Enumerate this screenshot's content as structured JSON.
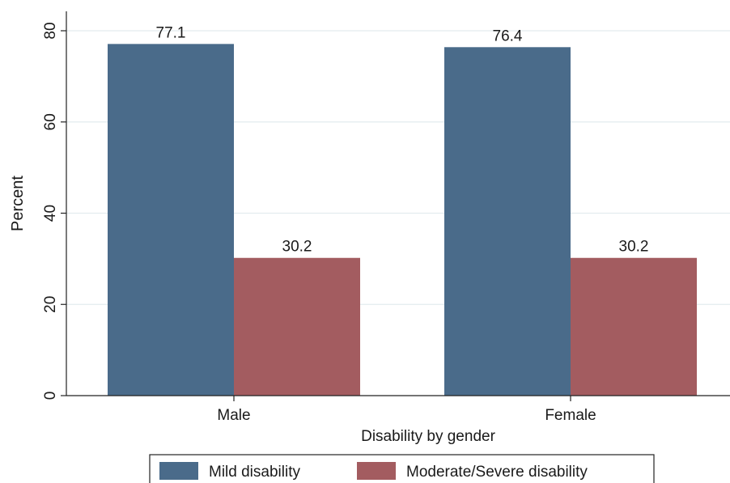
{
  "chart_data": {
    "type": "bar",
    "categories": [
      "Male",
      "Female"
    ],
    "series": [
      {
        "name": "Mild disability",
        "values": [
          77.1,
          76.4
        ],
        "color": "#4a6b8a"
      },
      {
        "name": "Moderate/Severe disability",
        "values": [
          30.2,
          30.2
        ],
        "color": "#a35c60"
      }
    ],
    "data_labels": [
      [
        "77.1",
        "76.4"
      ],
      [
        "30.2",
        "30.2"
      ]
    ],
    "xlabel": "Disability by gender",
    "ylabel": "Percent",
    "ylim": [
      0,
      80
    ],
    "yticks": [
      0,
      20,
      40,
      60,
      80
    ],
    "grid": true,
    "legend_position": "bottom"
  }
}
